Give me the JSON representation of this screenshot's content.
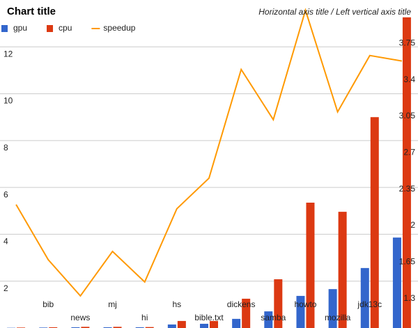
{
  "chart_data": {
    "type": "bar",
    "title": "Chart title",
    "axis_title": "Horizontal axis title / Left vertical axis title",
    "categories": [
      null,
      "bib",
      "news",
      "mj",
      "hi",
      "hs",
      "bible.txt",
      "dickens",
      "samba",
      "howto",
      "mozilla",
      "jdk13c",
      null
    ],
    "series": [
      {
        "name": "gpu",
        "color": "#3366cc",
        "values": [
          0.01,
          0.02,
          0.03,
          0.03,
          0.03,
          0.15,
          0.18,
          0.39,
          0.71,
          1.37,
          1.66,
          2.56,
          3.86
        ]
      },
      {
        "name": "cpu",
        "color": "#dc3912",
        "values": [
          0.02,
          0.03,
          0.05,
          0.05,
          0.04,
          0.3,
          0.3,
          1.25,
          2.08,
          5.35,
          4.96,
          9.0,
          13.26
        ]
      },
      {
        "name": "speedup",
        "color": "#ff9900",
        "type": "line",
        "axis": "y2",
        "values": [
          2.135,
          1.606,
          1.258,
          1.686,
          1.392,
          2.095,
          2.389,
          3.433,
          2.951,
          4.002,
          3.025,
          3.567,
          3.514
        ]
      }
    ],
    "ylim": [
      0,
      14
    ],
    "yticks": [
      2,
      4,
      6,
      8,
      10,
      12
    ],
    "y2lim": [
      0.95,
      4.1
    ],
    "y2ticks": [
      1.3,
      1.65,
      2,
      2.35,
      2.7,
      3.05,
      3.4,
      3.75
    ],
    "grid": true,
    "legend": "top-left"
  }
}
